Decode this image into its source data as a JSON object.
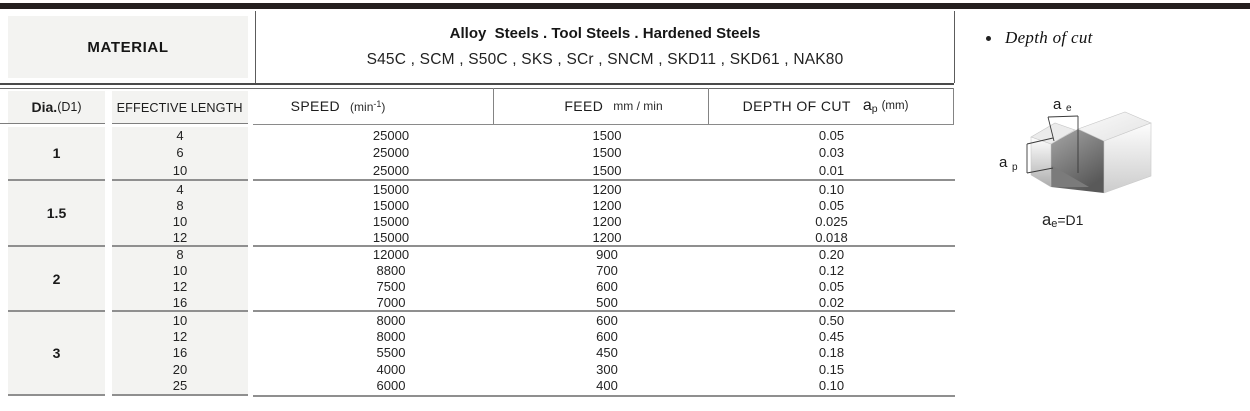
{
  "header": {
    "material_label": "MATERIAL",
    "material_group_title": "Alloy  Steels . Tool Steels . Hardened Steels",
    "material_grades": "S45C , SCM , S50C , SKS , SCr , SNCM , SKD11 , SKD61 , NAK80"
  },
  "columns": {
    "dia_bold": "Dia.",
    "dia_normal": "(D1)",
    "effective_length": "EFFECTIVE LENGTH",
    "speed_label": "SPEED",
    "speed_unit_open": "(min",
    "speed_unit_sup": "-1",
    "speed_unit_close": ")",
    "feed_label": "FEED",
    "feed_unit": "mm / min",
    "depth_label": "DEPTH OF CUT",
    "depth_symbol": "a",
    "depth_symbol_sub": "p",
    "depth_unit": "(mm)"
  },
  "table": {
    "groups": [
      {
        "dia": "1",
        "rows": [
          {
            "length": "4",
            "speed": "25000",
            "feed": "1500",
            "depth": "0.05"
          },
          {
            "length": "6",
            "speed": "25000",
            "feed": "1500",
            "depth": "0.03"
          },
          {
            "length": "10",
            "speed": "25000",
            "feed": "1500",
            "depth": "0.01"
          }
        ]
      },
      {
        "dia": "1.5",
        "rows": [
          {
            "length": "4",
            "speed": "15000",
            "feed": "1200",
            "depth": "0.10"
          },
          {
            "length": "8",
            "speed": "15000",
            "feed": "1200",
            "depth": "0.05"
          },
          {
            "length": "10",
            "speed": "15000",
            "feed": "1200",
            "depth": "0.025"
          },
          {
            "length": "12",
            "speed": "15000",
            "feed": "1200",
            "depth": "0.018"
          }
        ]
      },
      {
        "dia": "2",
        "rows": [
          {
            "length": "8",
            "speed": "12000",
            "feed": "900",
            "depth": "0.20"
          },
          {
            "length": "10",
            "speed": "8800",
            "feed": "700",
            "depth": "0.12"
          },
          {
            "length": "12",
            "speed": "7500",
            "feed": "600",
            "depth": "0.05"
          },
          {
            "length": "16",
            "speed": "7000",
            "feed": "500",
            "depth": "0.02"
          }
        ]
      },
      {
        "dia": "3",
        "rows": [
          {
            "length": "10",
            "speed": "8000",
            "feed": "600",
            "depth": "0.50"
          },
          {
            "length": "12",
            "speed": "8000",
            "feed": "600",
            "depth": "0.45"
          },
          {
            "length": "16",
            "speed": "5500",
            "feed": "450",
            "depth": "0.18"
          },
          {
            "length": "20",
            "speed": "4000",
            "feed": "300",
            "depth": "0.15"
          },
          {
            "length": "25",
            "speed": "6000",
            "feed": "400",
            "depth": "0.10"
          }
        ]
      }
    ]
  },
  "side": {
    "bullet_label": "Depth of cut",
    "diagram": {
      "ae_a": "a",
      "ae_sub": "e",
      "ap_a": "a",
      "ap_sub": "p"
    },
    "caption_a": "a",
    "caption_sub": "e",
    "caption_rest": "=D1"
  },
  "colors": {
    "accent_bar": "#241f1f",
    "cell_gray": "#f3f3f1",
    "rule_dark": "#4a4a4a",
    "rule_light": "#8f8f8f"
  }
}
